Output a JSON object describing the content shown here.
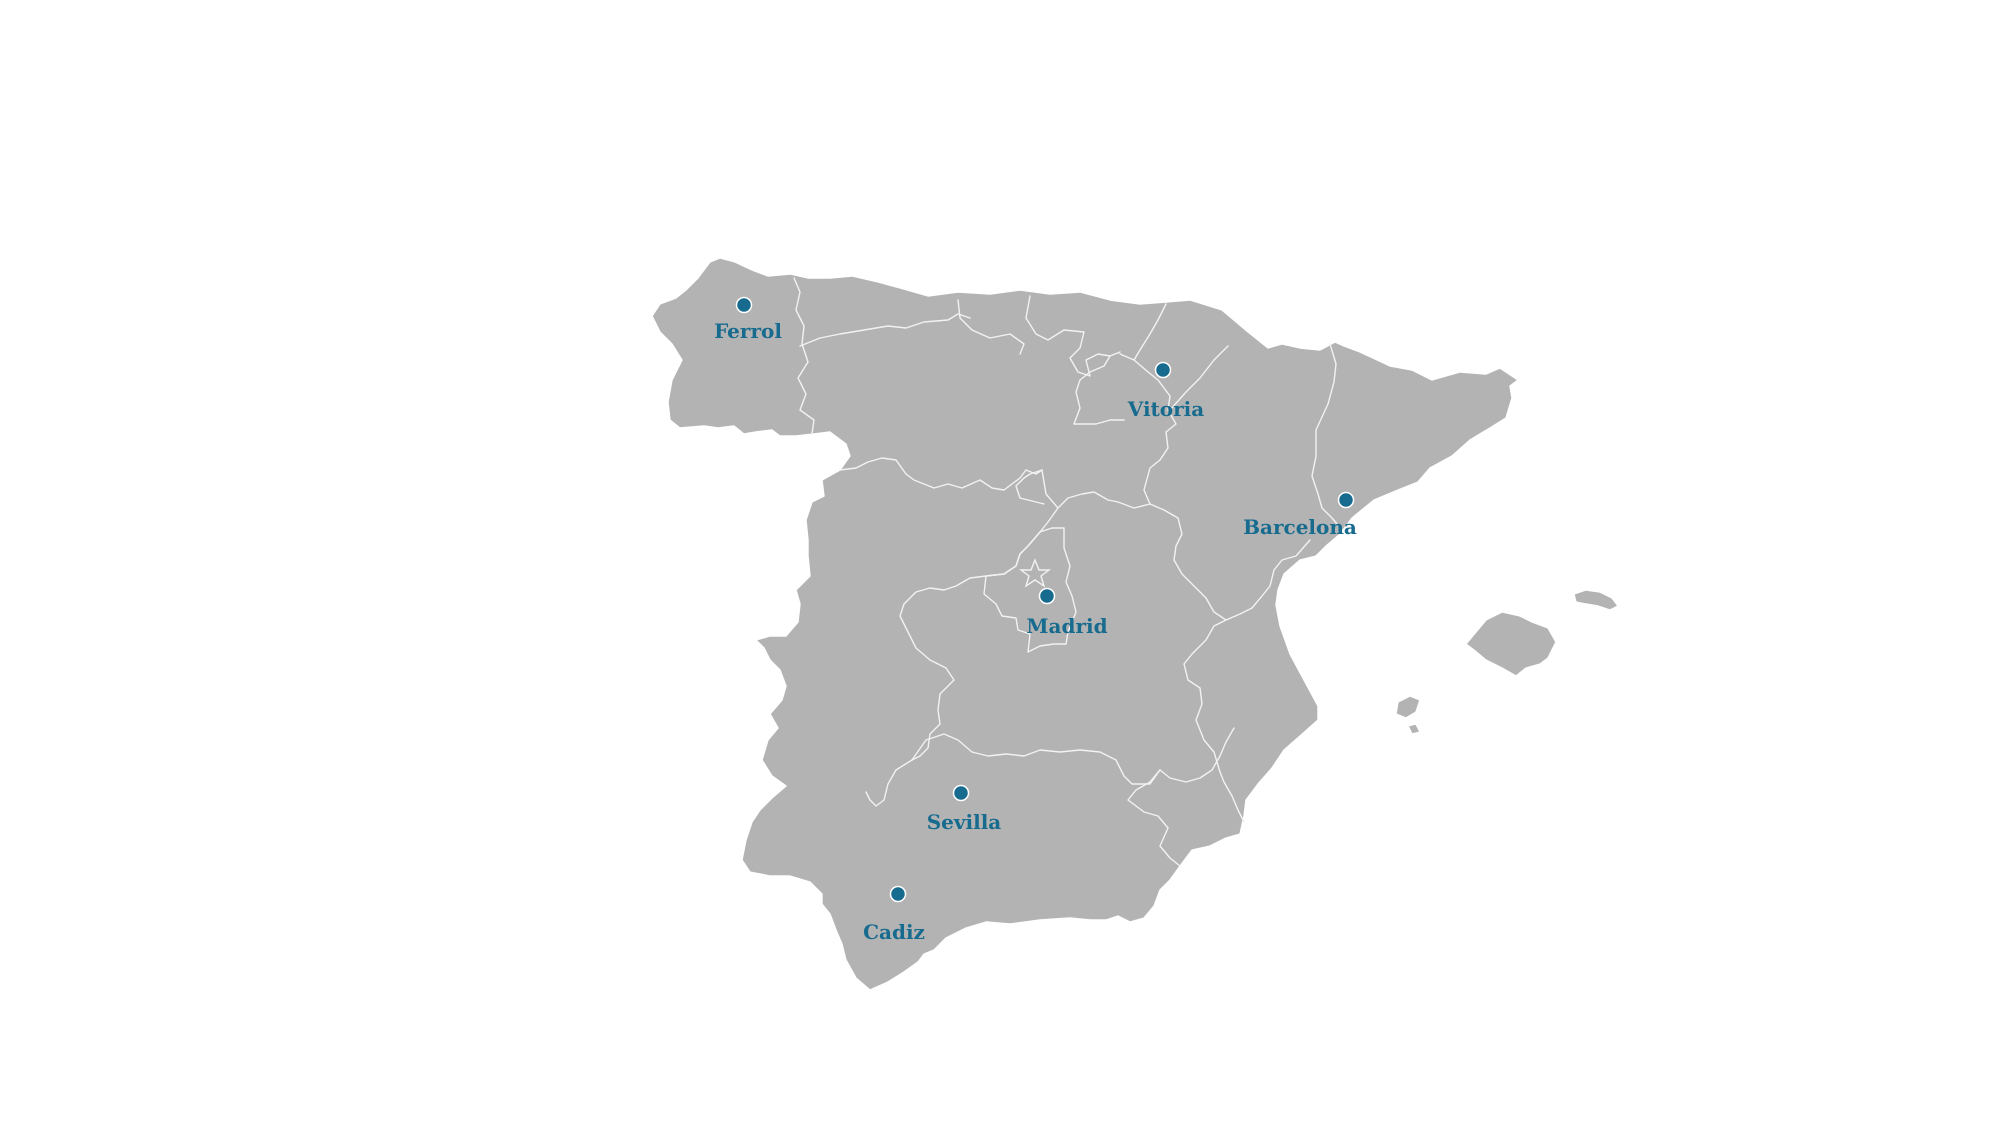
{
  "map": {
    "region": "Spain",
    "style": {
      "land_color": "#b3b3b3",
      "border_color": "#f2f2f2",
      "background_color": "#ffffff",
      "marker_color": "#176b8e",
      "label_color": "#176b8e"
    },
    "cities": [
      {
        "id": "ferrol",
        "name": "Ferrol"
      },
      {
        "id": "vitoria",
        "name": "Vitoria"
      },
      {
        "id": "barcelona",
        "name": "Barcelona"
      },
      {
        "id": "madrid",
        "name": "Madrid"
      },
      {
        "id": "sevilla",
        "name": "Sevilla"
      },
      {
        "id": "cadiz",
        "name": "Cadiz"
      }
    ],
    "capital_marker_icon": "star-icon"
  }
}
